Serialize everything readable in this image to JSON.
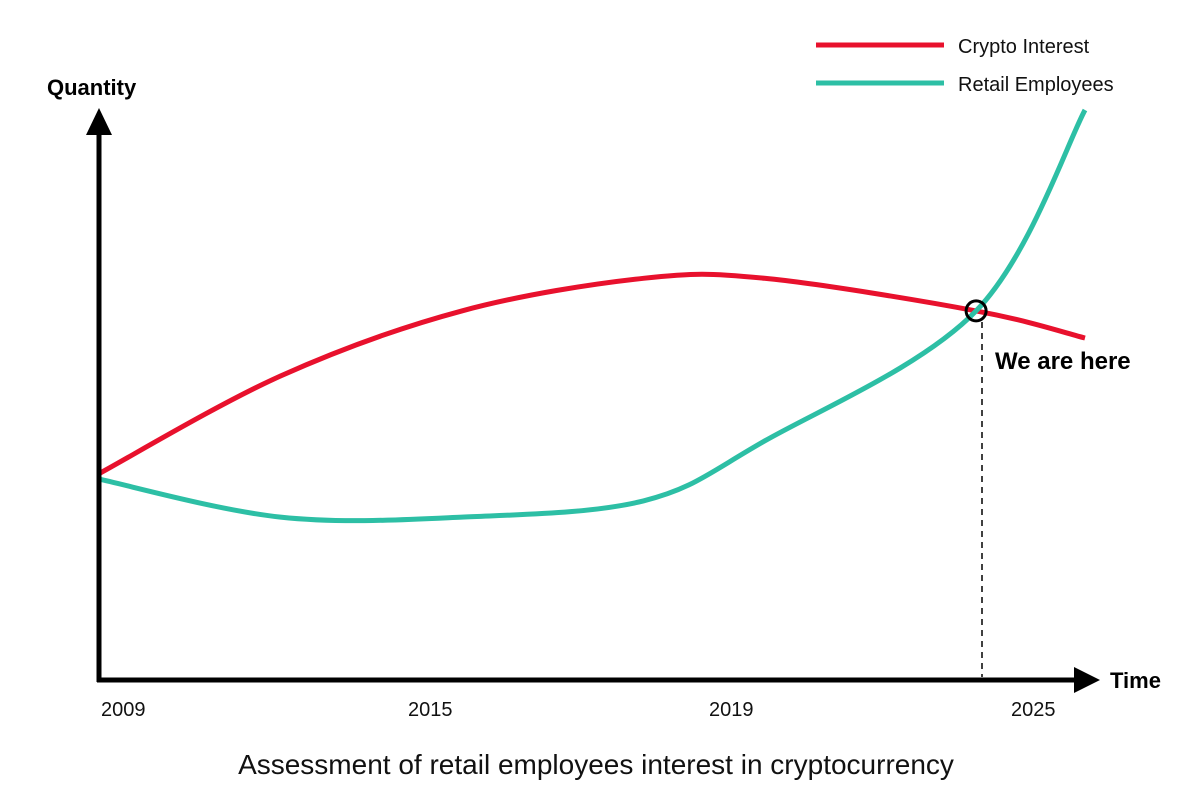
{
  "chart_data": {
    "type": "line",
    "title": "Assessment of retail employees interest in cryptocurrency",
    "xlabel": "Time",
    "ylabel": "Quantity",
    "x_ticks": [
      "2009",
      "2015",
      "2019",
      "2025"
    ],
    "legend_position": "top-right",
    "series": [
      {
        "name": "Crypto Interest",
        "color": "#e8112d",
        "points": [
          [
            2009,
            0.38
          ],
          [
            2012,
            0.56
          ],
          [
            2015,
            0.68
          ],
          [
            2018,
            0.74
          ],
          [
            2020,
            0.74
          ],
          [
            2023.5,
            0.68
          ],
          [
            2025.3,
            0.63
          ]
        ]
      },
      {
        "name": "Retail Employees",
        "color": "#2dbfa5",
        "points": [
          [
            2009,
            0.37
          ],
          [
            2012,
            0.3
          ],
          [
            2015,
            0.3
          ],
          [
            2018,
            0.33
          ],
          [
            2020,
            0.44
          ],
          [
            2023.5,
            0.68
          ],
          [
            2025.3,
            1.05
          ]
        ]
      }
    ],
    "annotation": {
      "text": "We are here",
      "x": 2023.5,
      "y": 0.68
    }
  }
}
